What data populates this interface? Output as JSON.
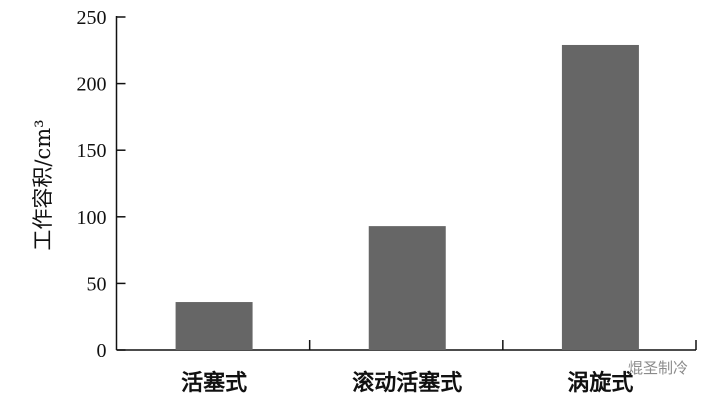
{
  "chart_data": {
    "type": "bar",
    "categories": [
      "活塞式",
      "滚动活塞式",
      "涡旋式"
    ],
    "values": [
      36,
      93,
      229
    ],
    "title": "",
    "xlabel": "",
    "ylabel": "工作容积/cm³",
    "ylim": [
      0,
      250
    ],
    "yticks": [
      0,
      50,
      100,
      150,
      200,
      250
    ],
    "grid": false,
    "bar_color": "#666666"
  },
  "watermark": "焜圣制冷"
}
